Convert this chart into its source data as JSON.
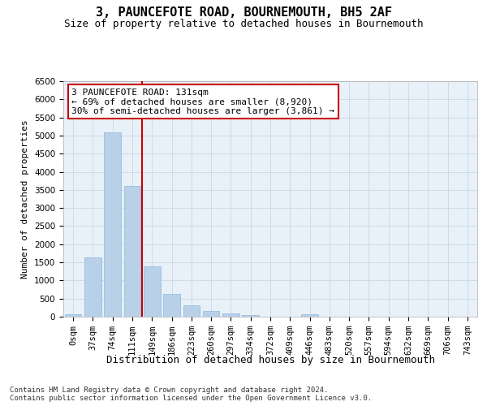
{
  "title": "3, PAUNCEFOTE ROAD, BOURNEMOUTH, BH5 2AF",
  "subtitle": "Size of property relative to detached houses in Bournemouth",
  "xlabel": "Distribution of detached houses by size in Bournemouth",
  "ylabel": "Number of detached properties",
  "footer_line1": "Contains HM Land Registry data © Crown copyright and database right 2024.",
  "footer_line2": "Contains public sector information licensed under the Open Government Licence v3.0.",
  "bar_labels": [
    "0sqm",
    "37sqm",
    "74sqm",
    "111sqm",
    "149sqm",
    "186sqm",
    "223sqm",
    "260sqm",
    "297sqm",
    "334sqm",
    "372sqm",
    "409sqm",
    "446sqm",
    "483sqm",
    "520sqm",
    "557sqm",
    "594sqm",
    "632sqm",
    "669sqm",
    "706sqm",
    "743sqm"
  ],
  "bar_values": [
    75,
    1630,
    5080,
    3600,
    1390,
    620,
    310,
    150,
    90,
    55,
    0,
    0,
    60,
    0,
    0,
    0,
    0,
    0,
    0,
    0,
    0
  ],
  "bar_color": "#b8d0e8",
  "bar_edgecolor": "#90b8d8",
  "ylim": [
    0,
    6500
  ],
  "yticks": [
    0,
    500,
    1000,
    1500,
    2000,
    2500,
    3000,
    3500,
    4000,
    4500,
    5000,
    5500,
    6000,
    6500
  ],
  "vline_color": "#cc0000",
  "annotation_text": "3 PAUNCEFOTE ROAD: 131sqm\n← 69% of detached houses are smaller (8,920)\n30% of semi-detached houses are larger (3,861) →",
  "annotation_box_edgecolor": "#cc0000",
  "annotation_box_facecolor": "#ffffff",
  "grid_color": "#c8d8e8",
  "plot_bg_color": "#e8f0f8",
  "title_fontsize": 11,
  "subtitle_fontsize": 9,
  "xlabel_fontsize": 9,
  "ylabel_fontsize": 8,
  "tick_fontsize": 7.5,
  "annotation_fontsize": 8
}
